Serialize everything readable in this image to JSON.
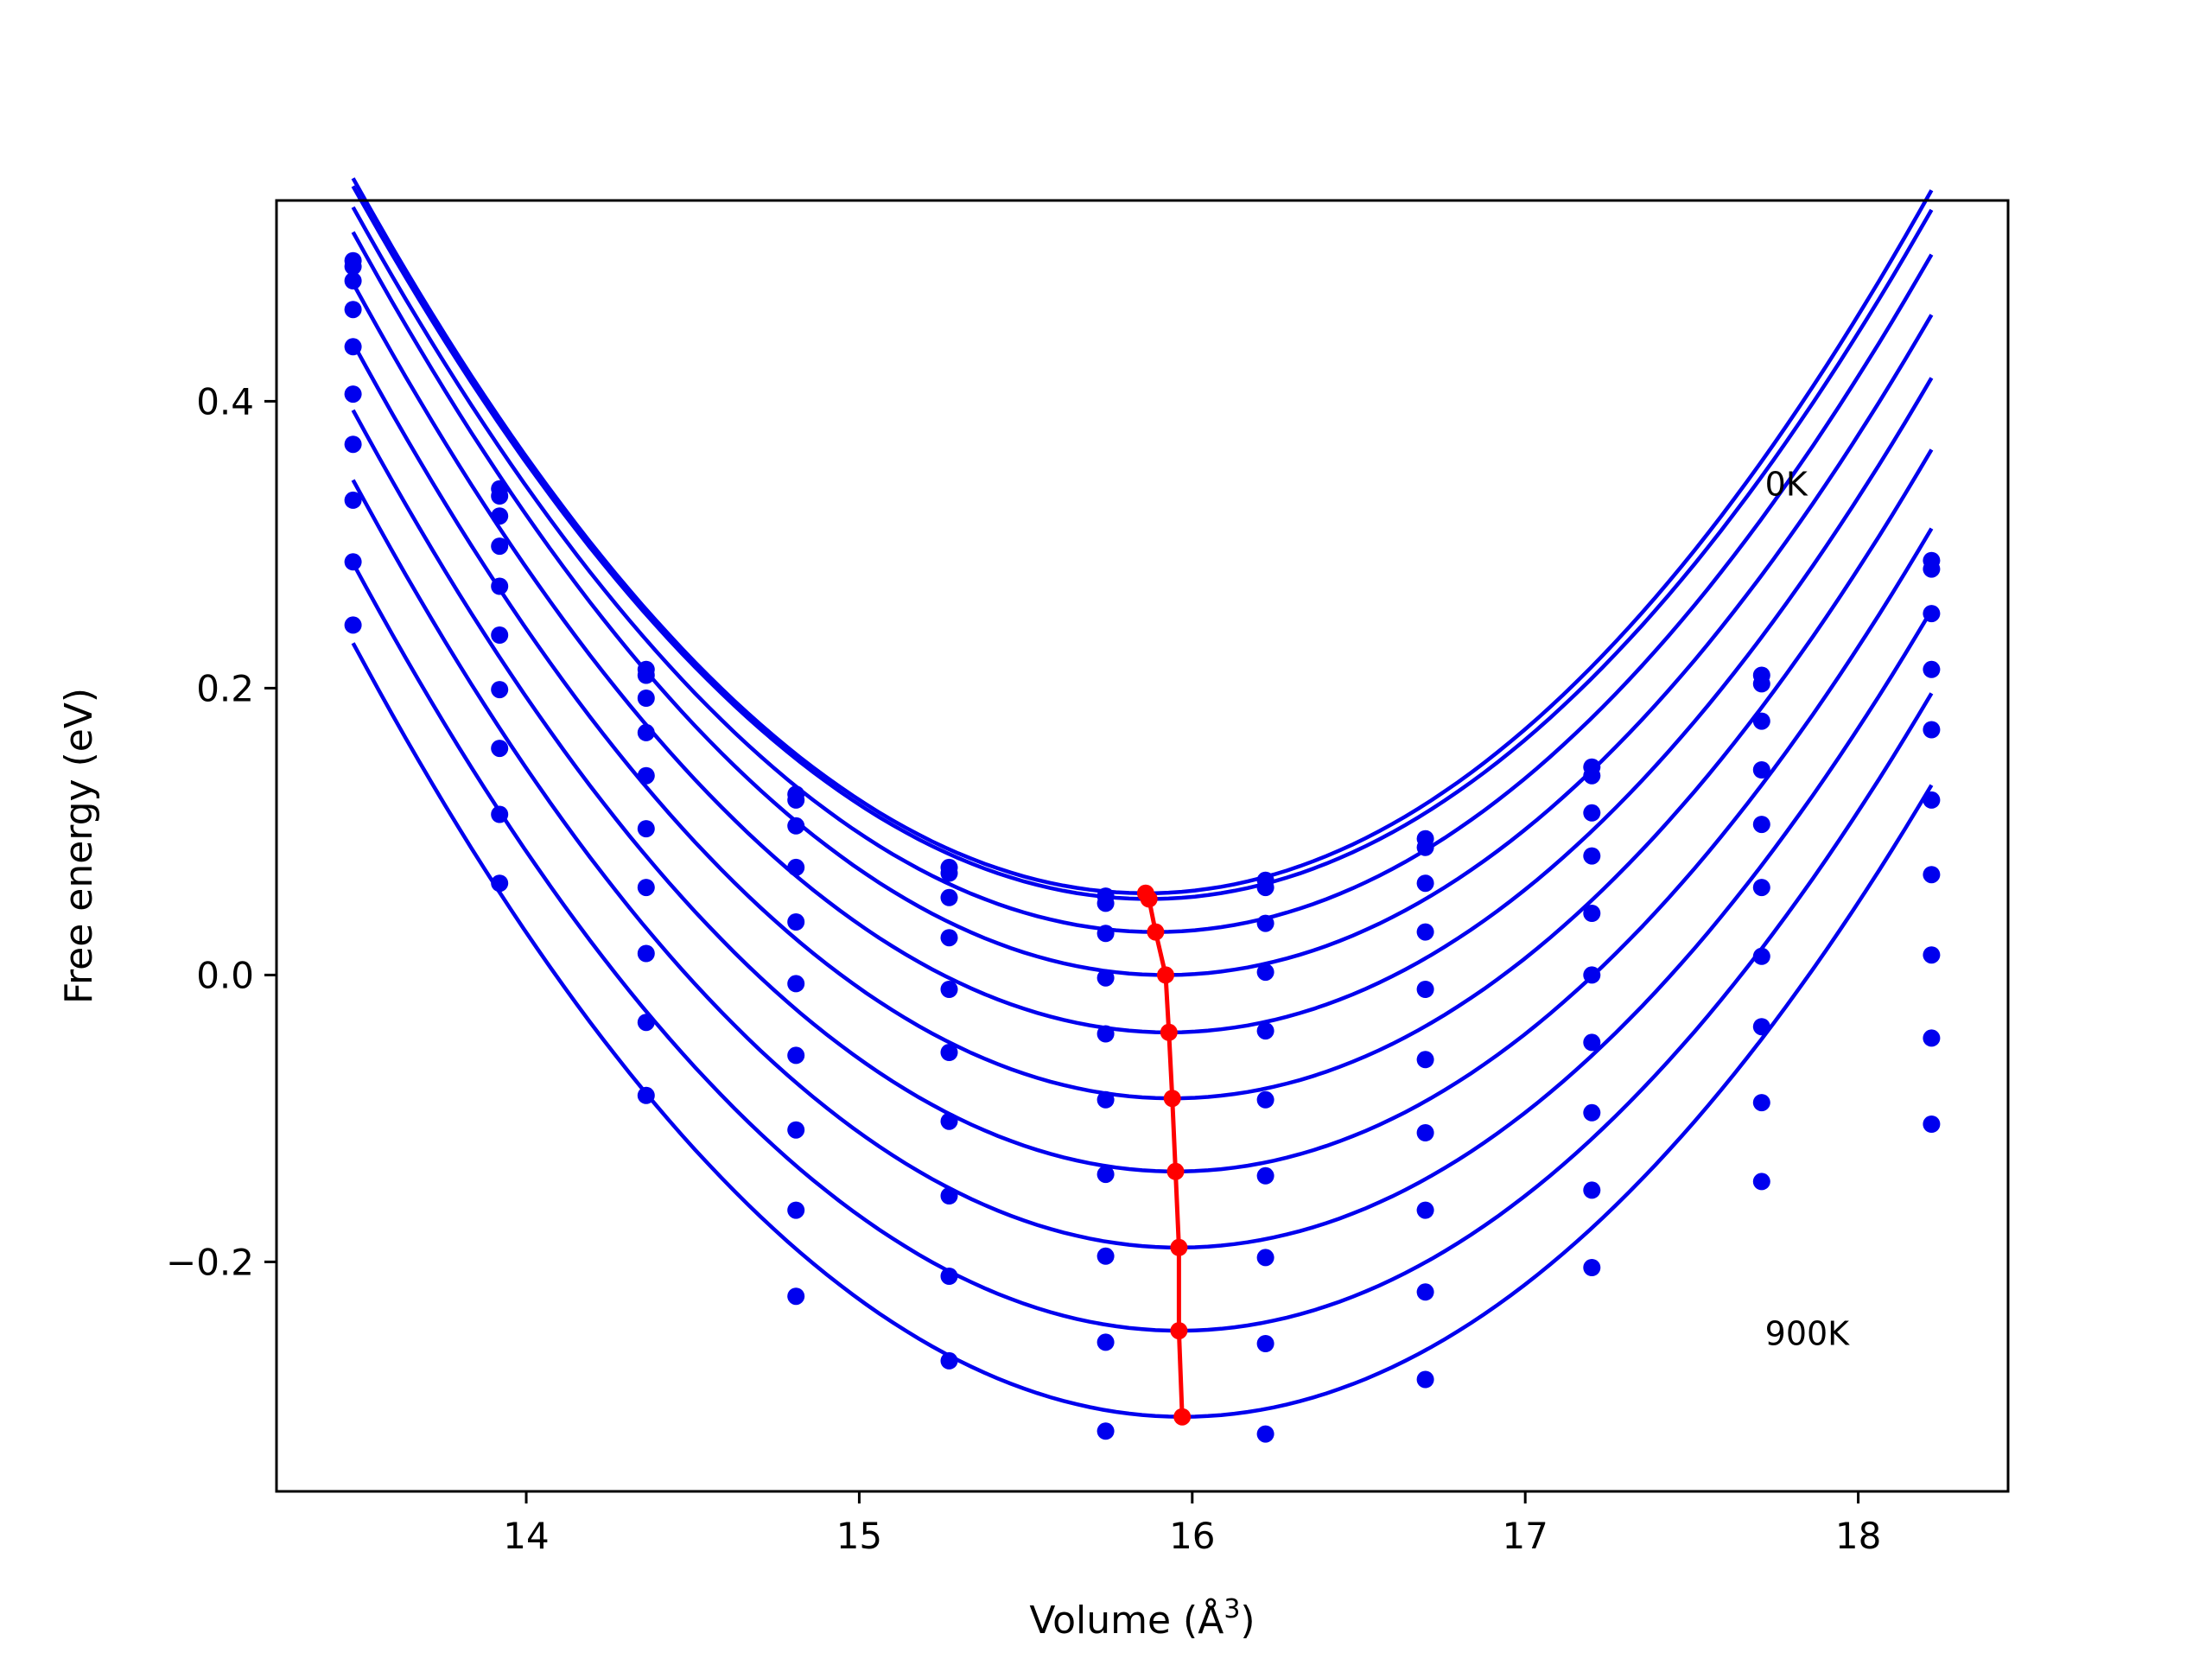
{
  "chart_data": {
    "type": "line",
    "title": "",
    "xlabel": "Volume (Å³)",
    "xlabel_text": "Volume (Å",
    "xlabel_sup": "3",
    "xlabel_close": ")",
    "ylabel": "Free energy (eV)",
    "xlim": [
      13.25,
      18.45
    ],
    "ylim": [
      -0.36,
      0.54
    ],
    "xticks": [
      14,
      15,
      16,
      17,
      18
    ],
    "xtick_labels": [
      "14",
      "15",
      "16",
      "17",
      "18"
    ],
    "yticks": [
      -0.2,
      0.0,
      0.2,
      0.4
    ],
    "ytick_labels": [
      "−0.2",
      "0.0",
      "0.2",
      "0.4"
    ],
    "grid": false,
    "annotations": [
      {
        "text": "0K",
        "x": 17.72,
        "y": 0.342
      },
      {
        "text": "900K",
        "x": 17.72,
        "y": -0.25
      }
    ],
    "colors": {
      "curves": "#0000ee",
      "points": "#0000ee",
      "minimum": "#ff0000"
    },
    "volumes": [
      13.48,
      13.92,
      14.36,
      14.81,
      15.27,
      15.74,
      16.22,
      16.7,
      17.2,
      17.71,
      18.22
    ],
    "curve_range": [
      13.48,
      18.22
    ],
    "series": [
      {
        "fit": {
          "v0": 15.86,
          "e0": 0.057,
          "a": 0.088
        },
        "points": [
          0.498,
          0.339,
          0.213,
          0.126,
          0.075,
          0.055,
          0.066,
          0.095,
          0.145,
          0.209,
          0.289
        ]
      },
      {
        "fit": {
          "v0": 15.87,
          "e0": 0.053,
          "a": 0.087
        },
        "points": [
          0.494,
          0.334,
          0.209,
          0.122,
          0.071,
          0.05,
          0.061,
          0.089,
          0.139,
          0.203,
          0.283
        ]
      },
      {
        "fit": {
          "v0": 15.89,
          "e0": 0.03,
          "a": 0.087
        },
        "points": [
          0.484,
          0.32,
          0.193,
          0.104,
          0.054,
          0.029,
          0.036,
          0.064,
          0.113,
          0.177,
          0.252
        ]
      },
      {
        "fit": {
          "v0": 15.92,
          "e0": 0.0,
          "a": 0.087
        },
        "points": [
          0.464,
          0.299,
          0.169,
          0.075,
          0.026,
          -0.002,
          0.002,
          0.03,
          0.083,
          0.143,
          0.213
        ]
      },
      {
        "fit": {
          "v0": 15.93,
          "e0": -0.04,
          "a": 0.087
        },
        "points": [
          0.438,
          0.271,
          0.139,
          0.037,
          -0.01,
          -0.041,
          -0.039,
          -0.01,
          0.043,
          0.105,
          0.171
        ]
      },
      {
        "fit": {
          "v0": 15.94,
          "e0": -0.086,
          "a": 0.087
        },
        "points": [
          0.405,
          0.237,
          0.102,
          -0.006,
          -0.054,
          -0.087,
          -0.087,
          -0.059,
          0.0,
          0.061,
          0.122
        ]
      },
      {
        "fit": {
          "v0": 15.95,
          "e0": -0.137,
          "a": 0.087
        },
        "points": [
          0.37,
          0.199,
          0.061,
          -0.056,
          -0.102,
          -0.139,
          -0.14,
          -0.11,
          -0.047,
          0.013,
          0.07
        ]
      },
      {
        "fit": {
          "v0": 15.96,
          "e0": -0.19,
          "a": 0.087
        },
        "points": [
          0.331,
          0.158,
          0.015,
          -0.108,
          -0.154,
          -0.196,
          -0.197,
          -0.164,
          -0.096,
          -0.036,
          0.014
        ]
      },
      {
        "fit": {
          "v0": 15.96,
          "e0": -0.248,
          "a": 0.087
        },
        "points": [
          0.288,
          0.112,
          -0.033,
          -0.164,
          -0.21,
          -0.256,
          -0.257,
          -0.221,
          -0.15,
          -0.089,
          -0.044
        ]
      },
      {
        "fit": {
          "v0": 15.97,
          "e0": -0.308,
          "a": 0.087
        },
        "points": [
          0.244,
          0.064,
          -0.084,
          -0.224,
          -0.269,
          -0.318,
          -0.32,
          -0.282,
          -0.204,
          -0.144,
          -0.104
        ]
      }
    ],
    "minimum_path": {
      "x": [
        15.86,
        15.87,
        15.89,
        15.92,
        15.93,
        15.94,
        15.95,
        15.96,
        15.96,
        15.97
      ],
      "y": [
        0.057,
        0.053,
        0.03,
        0.0,
        -0.04,
        -0.086,
        -0.137,
        -0.19,
        -0.248,
        -0.308
      ]
    }
  }
}
